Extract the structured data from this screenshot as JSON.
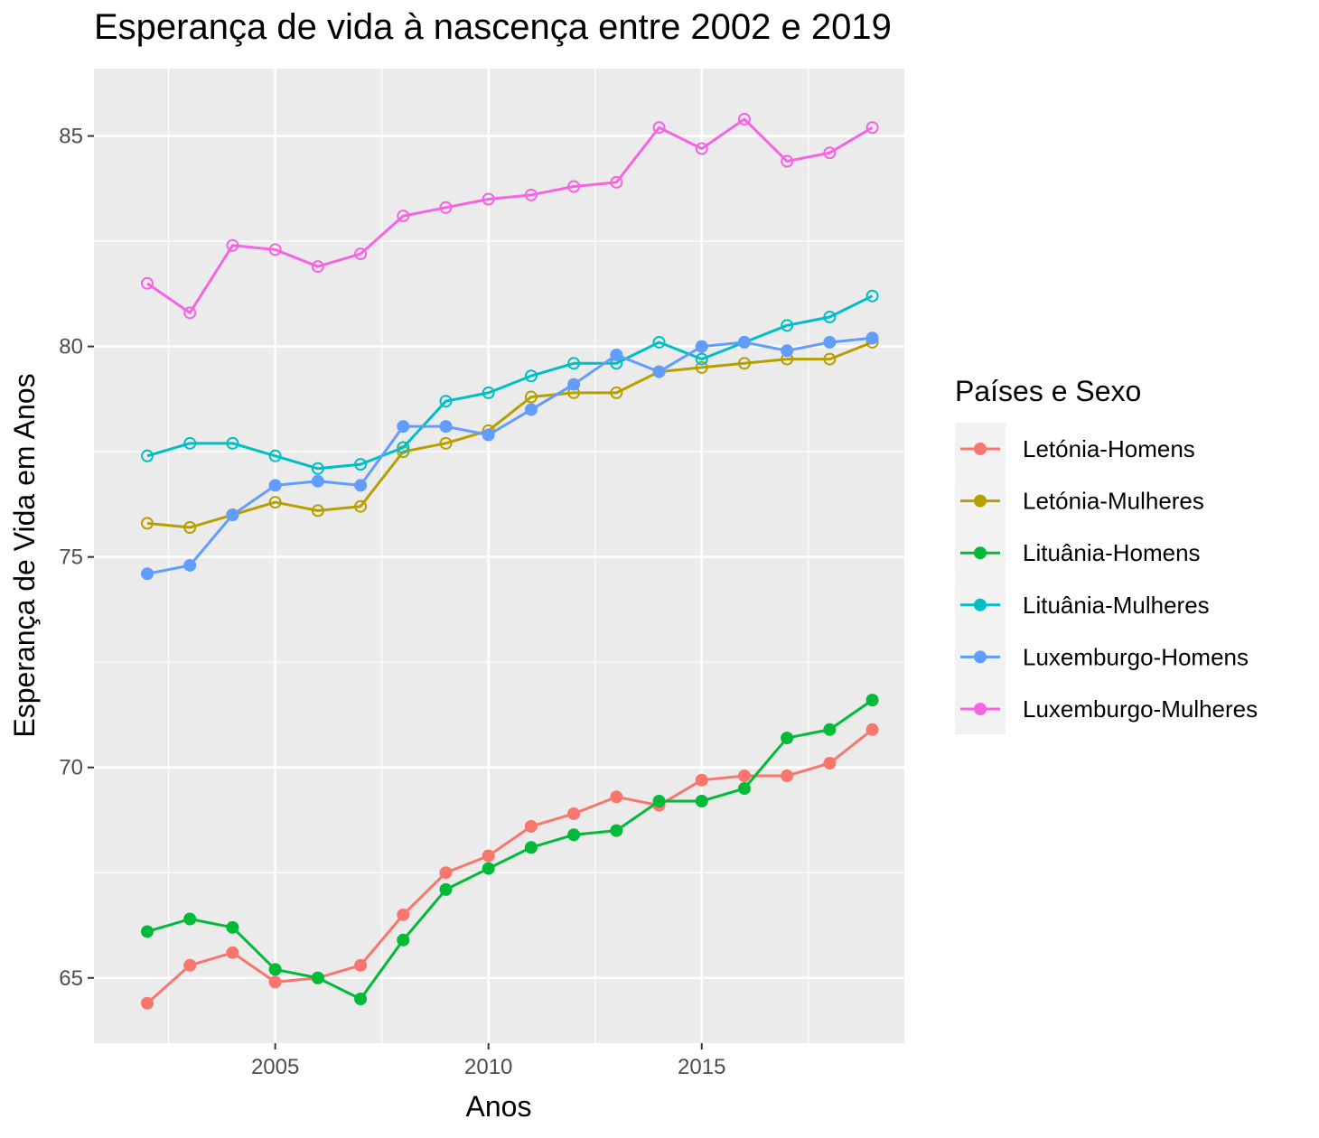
{
  "chart_data": {
    "type": "line",
    "title": "Esperança de vida à nascença entre 2002 e 2019",
    "xlabel": "Anos",
    "ylabel": "Esperança de Vida em Anos",
    "x": [
      2002,
      2003,
      2004,
      2005,
      2006,
      2007,
      2008,
      2009,
      2010,
      2011,
      2012,
      2013,
      2014,
      2015,
      2016,
      2017,
      2018,
      2019
    ],
    "xlim": [
      2000.75,
      2019.75
    ],
    "ylim": [
      63.45,
      86.6
    ],
    "x_ticks": [
      2005,
      2010,
      2015
    ],
    "y_ticks": [
      65,
      70,
      75,
      80,
      85
    ],
    "grid": true,
    "legend_title": "Países e Sexo",
    "legend_position": "right",
    "series": [
      {
        "name": "Letónia-Homens",
        "color": "#F8766D",
        "marker": "filled",
        "values": [
          64.4,
          65.3,
          65.6,
          64.9,
          65.0,
          65.3,
          66.5,
          67.5,
          67.9,
          68.6,
          68.9,
          69.3,
          69.1,
          69.7,
          69.8,
          69.8,
          70.1,
          70.9
        ]
      },
      {
        "name": "Letónia-Mulheres",
        "color": "#B79F00",
        "marker": "open",
        "values": [
          75.8,
          75.7,
          76.0,
          76.3,
          76.1,
          76.2,
          77.5,
          77.7,
          78.0,
          78.8,
          78.9,
          78.9,
          79.4,
          79.5,
          79.6,
          79.7,
          79.7,
          80.1
        ]
      },
      {
        "name": "Lituânia-Homens",
        "color": "#00BA38",
        "marker": "filled",
        "values": [
          66.1,
          66.4,
          66.2,
          65.2,
          65.0,
          64.5,
          65.9,
          67.1,
          67.6,
          68.1,
          68.4,
          68.5,
          69.2,
          69.2,
          69.5,
          70.7,
          70.9,
          71.6
        ]
      },
      {
        "name": "Lituânia-Mulheres",
        "color": "#00BFC4",
        "marker": "open",
        "values": [
          77.4,
          77.7,
          77.7,
          77.4,
          77.1,
          77.2,
          77.6,
          78.7,
          78.9,
          79.3,
          79.6,
          79.6,
          80.1,
          79.7,
          80.1,
          80.5,
          80.7,
          81.2
        ]
      },
      {
        "name": "Luxemburgo-Homens",
        "color": "#619CFF",
        "marker": "filled",
        "values": [
          74.6,
          74.8,
          76.0,
          76.7,
          76.8,
          76.7,
          78.1,
          78.1,
          77.9,
          78.5,
          79.1,
          79.8,
          79.4,
          80.0,
          80.1,
          79.9,
          80.1,
          80.2
        ]
      },
      {
        "name": "Luxemburgo-Mulheres",
        "color": "#F564E3",
        "marker": "open",
        "values": [
          81.5,
          80.8,
          82.4,
          82.3,
          81.9,
          82.2,
          83.1,
          83.3,
          83.5,
          83.6,
          83.8,
          83.9,
          85.2,
          84.7,
          85.4,
          84.4,
          84.6,
          85.2
        ]
      }
    ]
  }
}
